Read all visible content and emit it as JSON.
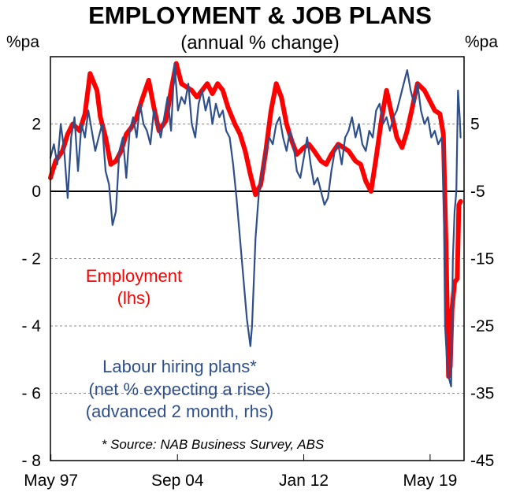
{
  "chart_data": {
    "type": "line",
    "title": "EMPLOYMENT & JOB PLANS",
    "subtitle": "(annual % change)",
    "left_axis_unit": "%pa",
    "right_axis_unit": "%pa",
    "x_tick_labels": [
      "May 97",
      "Sep 04",
      "Jan 12",
      "May 19"
    ],
    "x_tick_positions": [
      1997.33,
      2004.67,
      2012.0,
      2019.33
    ],
    "xlim": [
      1997.3,
      2021.3
    ],
    "ylim_left": [
      -8,
      4
    ],
    "ylim_right": [
      -45,
      15
    ],
    "y_ticks_left": [
      2,
      0,
      -2,
      -4,
      -6,
      -8
    ],
    "y_tick_labels_left": [
      "2",
      "0",
      "- 2",
      "- 4",
      "- 6",
      "- 8"
    ],
    "y_ticks_right": [
      5,
      -5,
      -15,
      -25,
      -35,
      -45
    ],
    "y_tick_labels_right": [
      "5",
      "-5",
      "-15",
      "-25",
      "-35",
      "-45"
    ],
    "gridlines_left": [
      2,
      -2,
      -4,
      -6
    ],
    "annotations": {
      "employment_label": [
        "Employment",
        "(lhs)"
      ],
      "hiring_label": [
        "Labour hiring plans*",
        "(net % expecting a rise)",
        "(advanced 2 month, rhs)"
      ],
      "source": "* Source: NAB Business Survey, ABS"
    },
    "series": [
      {
        "name": "Employment (lhs)",
        "axis": "left",
        "color": "#ff0000",
        "x": [
          1997.3,
          1997.6,
          1998.0,
          1998.3,
          1998.6,
          1999.0,
          1999.3,
          1999.6,
          2000.0,
          2000.2,
          2000.5,
          2000.8,
          2001.1,
          2001.4,
          2001.7,
          2002.0,
          2002.3,
          2002.6,
          2003.0,
          2003.3,
          2003.6,
          2004.0,
          2004.3,
          2004.6,
          2004.9,
          2005.2,
          2005.5,
          2005.8,
          2006.1,
          2006.4,
          2006.7,
          2007.0,
          2007.3,
          2007.6,
          2008.0,
          2008.3,
          2008.6,
          2008.9,
          2009.2,
          2009.5,
          2009.8,
          2010.1,
          2010.4,
          2010.7,
          2011.0,
          2011.3,
          2011.6,
          2012.0,
          2012.3,
          2012.6,
          2013.0,
          2013.3,
          2013.6,
          2014.0,
          2014.3,
          2014.6,
          2015.0,
          2015.3,
          2015.6,
          2015.9,
          2016.2,
          2016.5,
          2016.8,
          2017.1,
          2017.4,
          2017.7,
          2018.0,
          2018.3,
          2018.6,
          2019.0,
          2019.3,
          2019.6,
          2019.9,
          2020.1,
          2020.25,
          2020.4,
          2020.5,
          2020.6,
          2020.75,
          2020.9,
          2021.0,
          2021.1
        ],
        "values": [
          0.4,
          0.9,
          1.2,
          1.7,
          2.0,
          1.8,
          2.3,
          3.5,
          3.0,
          2.2,
          1.6,
          0.8,
          0.9,
          1.2,
          1.7,
          1.9,
          2.2,
          2.7,
          3.3,
          2.5,
          1.8,
          2.1,
          3.0,
          3.8,
          3.2,
          3.1,
          3.0,
          2.8,
          3.0,
          3.2,
          2.9,
          3.2,
          3.0,
          2.5,
          2.0,
          1.7,
          1.2,
          0.5,
          -0.1,
          0.2,
          1.2,
          2.4,
          3.2,
          2.8,
          2.0,
          1.5,
          1.1,
          1.3,
          1.4,
          1.2,
          0.9,
          0.8,
          1.1,
          1.4,
          1.3,
          1.2,
          0.9,
          0.8,
          0.3,
          0.0,
          1.0,
          2.1,
          3.0,
          2.3,
          1.6,
          1.3,
          1.8,
          2.5,
          3.2,
          3.0,
          2.7,
          2.4,
          2.3,
          1.7,
          -1.5,
          -5.5,
          -5.2,
          -3.5,
          -2.7,
          -2.6,
          -0.4,
          -0.3
        ]
      },
      {
        "name": "Labour hiring plans (rhs)",
        "axis": "right",
        "color": "#2f4f8b",
        "x": [
          1997.3,
          1997.5,
          1997.7,
          1997.9,
          1998.1,
          1998.3,
          1998.5,
          1998.7,
          1998.9,
          1999.1,
          1999.3,
          1999.5,
          1999.7,
          1999.9,
          2000.1,
          2000.3,
          2000.5,
          2000.7,
          2000.9,
          2001.1,
          2001.3,
          2001.5,
          2001.7,
          2001.9,
          2002.1,
          2002.3,
          2002.5,
          2002.7,
          2002.9,
          2003.1,
          2003.3,
          2003.5,
          2003.7,
          2003.9,
          2004.1,
          2004.3,
          2004.5,
          2004.7,
          2004.9,
          2005.1,
          2005.3,
          2005.5,
          2005.7,
          2005.9,
          2006.1,
          2006.3,
          2006.5,
          2006.7,
          2006.9,
          2007.1,
          2007.3,
          2007.5,
          2007.7,
          2007.9,
          2008.1,
          2008.3,
          2008.5,
          2008.7,
          2008.9,
          2009.0,
          2009.2,
          2009.4,
          2009.6,
          2009.8,
          2010.0,
          2010.2,
          2010.4,
          2010.6,
          2010.8,
          2011.0,
          2011.2,
          2011.4,
          2011.6,
          2011.8,
          2012.0,
          2012.2,
          2012.4,
          2012.6,
          2012.8,
          2013.0,
          2013.2,
          2013.4,
          2013.6,
          2013.8,
          2014.0,
          2014.2,
          2014.4,
          2014.6,
          2014.8,
          2015.0,
          2015.2,
          2015.4,
          2015.6,
          2015.8,
          2016.0,
          2016.2,
          2016.4,
          2016.6,
          2016.8,
          2017.0,
          2017.2,
          2017.4,
          2017.6,
          2017.8,
          2018.0,
          2018.2,
          2018.4,
          2018.6,
          2018.8,
          2019.0,
          2019.2,
          2019.4,
          2019.6,
          2019.8,
          2020.0,
          2020.1,
          2020.2,
          2020.35,
          2020.45,
          2020.55,
          2020.65,
          2020.75,
          2020.85,
          2020.95,
          2021.05,
          2021.1
        ],
        "values": [
          0,
          2,
          -1,
          5,
          1,
          -6,
          3,
          6,
          -2,
          5,
          3,
          7,
          4,
          1,
          3,
          5,
          -2,
          -4,
          -10,
          -8,
          1,
          3,
          -3,
          4,
          6,
          3,
          8,
          5,
          4,
          2,
          7,
          5,
          3,
          6,
          9,
          4,
          14,
          7,
          9,
          8,
          11,
          5,
          3,
          8,
          10,
          7,
          9,
          5,
          8,
          6,
          7,
          4,
          3,
          -1,
          -6,
          -12,
          -18,
          -24,
          -28,
          -25,
          -12,
          -5,
          -2,
          1,
          3,
          2,
          5,
          6,
          3,
          1,
          4,
          2,
          -2,
          -3,
          0,
          3,
          -1,
          -4,
          -3,
          -5,
          -7,
          -6,
          -2,
          1,
          2,
          -1,
          3,
          4,
          6,
          3,
          5,
          2,
          1,
          4,
          3,
          7,
          8,
          5,
          6,
          4,
          6,
          7,
          9,
          11,
          13,
          10,
          8,
          11,
          7,
          5,
          6,
          3,
          4,
          2,
          3,
          0,
          -25,
          -32,
          -33,
          -34,
          -15,
          -8,
          -5,
          10,
          6,
          3
        ]
      }
    ]
  }
}
